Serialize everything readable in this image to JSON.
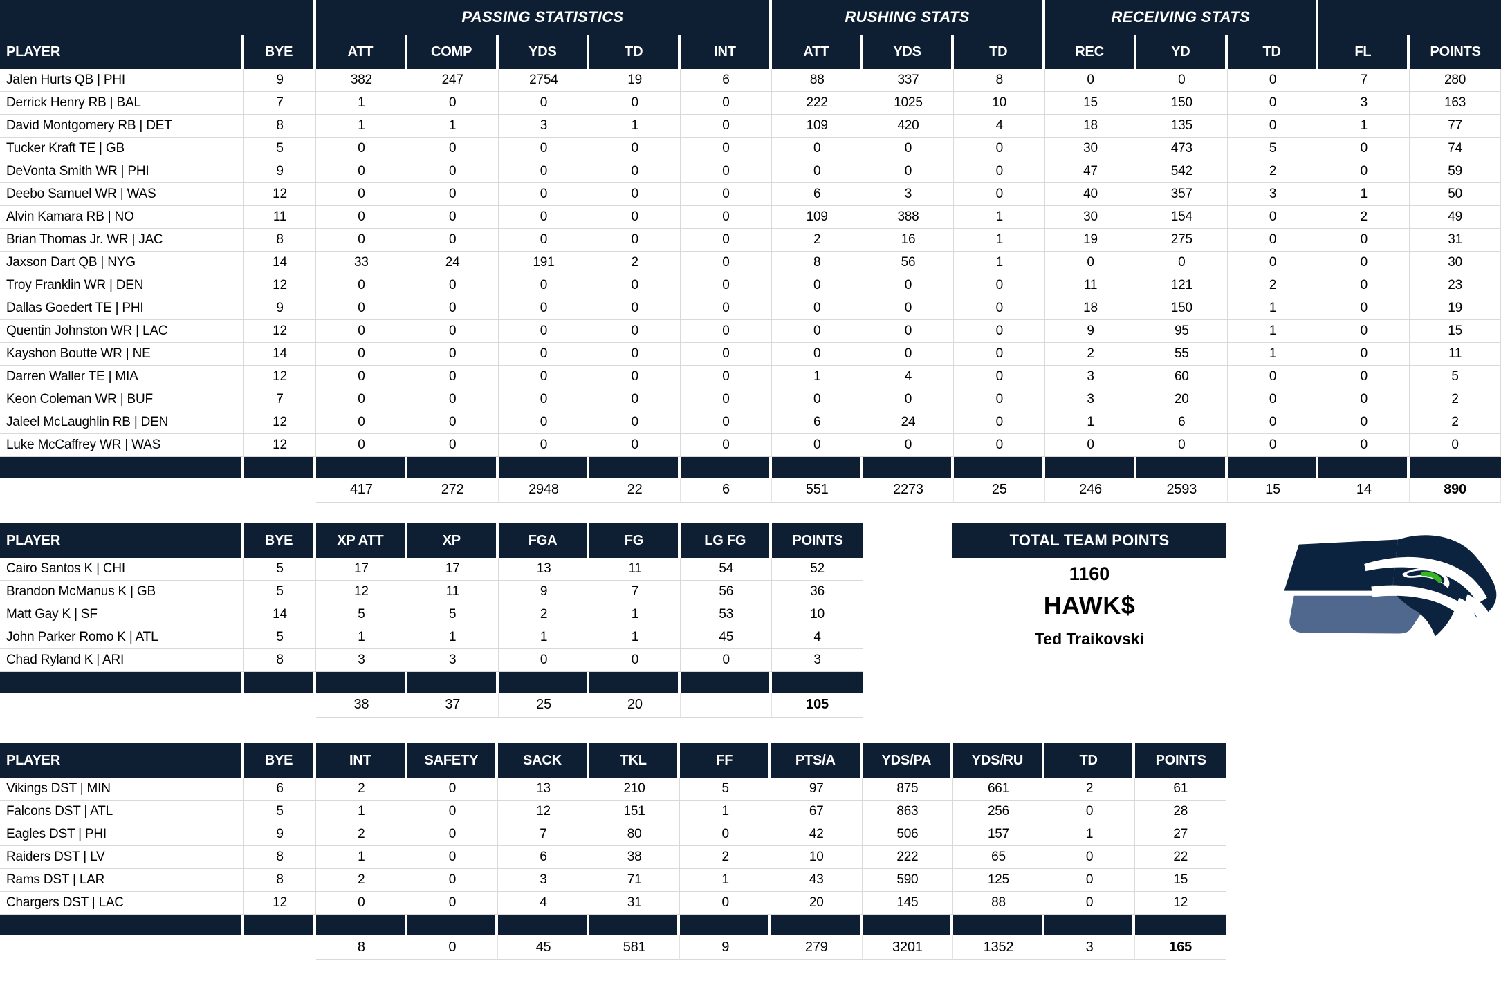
{
  "colors": {
    "header_bg": "#0e1e33",
    "grid_line": "#d9d9d9",
    "header_text": "#ffffff",
    "body_text": "#000000"
  },
  "logo": {
    "name": "seattle-seahawks-logo",
    "navy": "#0c2340",
    "steel": "#50688d",
    "green": "#36b424",
    "white": "#ffffff"
  },
  "team_summary": {
    "title": "TOTAL TEAM POINTS",
    "total_points": "1160",
    "team_name": "HAWK$",
    "owner": "Ted Traikovski"
  },
  "tables": [
    {
      "id": "offense",
      "group_headers": [
        {
          "label": "",
          "span": 2
        },
        {
          "label": "PASSING STATISTICS",
          "span": 5
        },
        {
          "label": "RUSHING STATS",
          "span": 3
        },
        {
          "label": "RECEIVING STATS",
          "span": 3
        },
        {
          "label": "",
          "span": 2
        }
      ],
      "columns": [
        "PLAYER",
        "BYE",
        "ATT",
        "COMP",
        "YDS",
        "TD",
        "INT",
        "ATT",
        "YDS",
        "TD",
        "REC",
        "YD",
        "TD",
        "FL",
        "POINTS"
      ],
      "rows": [
        [
          "Jalen Hurts QB | PHI",
          9,
          382,
          247,
          2754,
          19,
          6,
          88,
          337,
          8,
          0,
          0,
          0,
          7,
          280
        ],
        [
          "Derrick Henry RB | BAL",
          7,
          1,
          0,
          0,
          0,
          0,
          222,
          1025,
          10,
          15,
          150,
          0,
          3,
          163
        ],
        [
          "David Montgomery RB | DET",
          8,
          1,
          1,
          3,
          1,
          0,
          109,
          420,
          4,
          18,
          135,
          0,
          1,
          77
        ],
        [
          "Tucker Kraft TE | GB",
          5,
          0,
          0,
          0,
          0,
          0,
          0,
          0,
          0,
          30,
          473,
          5,
          0,
          74
        ],
        [
          "DeVonta Smith WR | PHI",
          9,
          0,
          0,
          0,
          0,
          0,
          0,
          0,
          0,
          47,
          542,
          2,
          0,
          59
        ],
        [
          "Deebo Samuel WR | WAS",
          12,
          0,
          0,
          0,
          0,
          0,
          6,
          3,
          0,
          40,
          357,
          3,
          1,
          50
        ],
        [
          "Alvin Kamara RB | NO",
          11,
          0,
          0,
          0,
          0,
          0,
          109,
          388,
          1,
          30,
          154,
          0,
          2,
          49
        ],
        [
          "Brian Thomas Jr. WR | JAC",
          8,
          0,
          0,
          0,
          0,
          0,
          2,
          16,
          1,
          19,
          275,
          0,
          0,
          31
        ],
        [
          "Jaxson Dart QB | NYG",
          14,
          33,
          24,
          191,
          2,
          0,
          8,
          56,
          1,
          0,
          0,
          0,
          0,
          30
        ],
        [
          "Troy Franklin WR | DEN",
          12,
          0,
          0,
          0,
          0,
          0,
          0,
          0,
          0,
          11,
          121,
          2,
          0,
          23
        ],
        [
          "Dallas Goedert TE | PHI",
          9,
          0,
          0,
          0,
          0,
          0,
          0,
          0,
          0,
          18,
          150,
          1,
          0,
          19
        ],
        [
          "Quentin Johnston WR | LAC",
          12,
          0,
          0,
          0,
          0,
          0,
          0,
          0,
          0,
          9,
          95,
          1,
          0,
          15
        ],
        [
          "Kayshon Boutte WR | NE",
          14,
          0,
          0,
          0,
          0,
          0,
          0,
          0,
          0,
          2,
          55,
          1,
          0,
          11
        ],
        [
          "Darren Waller TE | MIA",
          12,
          0,
          0,
          0,
          0,
          0,
          1,
          4,
          0,
          3,
          60,
          0,
          0,
          5
        ],
        [
          "Keon Coleman WR | BUF",
          7,
          0,
          0,
          0,
          0,
          0,
          0,
          0,
          0,
          3,
          20,
          0,
          0,
          2
        ],
        [
          "Jaleel McLaughlin RB | DEN",
          12,
          0,
          0,
          0,
          0,
          0,
          6,
          24,
          0,
          1,
          6,
          0,
          0,
          2
        ],
        [
          "Luke McCaffrey WR | WAS",
          12,
          0,
          0,
          0,
          0,
          0,
          0,
          0,
          0,
          0,
          0,
          0,
          0,
          0
        ]
      ],
      "totals": [
        "",
        "",
        417,
        272,
        2948,
        22,
        6,
        551,
        2273,
        25,
        246,
        2593,
        15,
        14,
        890
      ]
    },
    {
      "id": "kickers",
      "columns": [
        "PLAYER",
        "BYE",
        "XP ATT",
        "XP",
        "FGA",
        "FG",
        "LG FG",
        "POINTS"
      ],
      "rows": [
        [
          "Cairo Santos K | CHI",
          5,
          17,
          17,
          13,
          11,
          54,
          52
        ],
        [
          "Brandon McManus K | GB",
          5,
          12,
          11,
          9,
          7,
          56,
          36
        ],
        [
          "Matt Gay K | SF",
          14,
          5,
          5,
          2,
          1,
          53,
          10
        ],
        [
          "John Parker Romo K | ATL",
          5,
          1,
          1,
          1,
          1,
          45,
          4
        ],
        [
          "Chad Ryland K | ARI",
          8,
          3,
          3,
          0,
          0,
          0,
          3
        ]
      ],
      "totals": [
        "",
        "",
        38,
        37,
        25,
        20,
        "",
        105
      ]
    },
    {
      "id": "defense",
      "columns": [
        "PLAYER",
        "BYE",
        "INT",
        "SAFETY",
        "SACK",
        "TKL",
        "FF",
        "PTS/A",
        "YDS/PA",
        "YDS/RU",
        "TD",
        "POINTS"
      ],
      "rows": [
        [
          "Vikings DST | MIN",
          6,
          2,
          0,
          13,
          210,
          5,
          97,
          875,
          661,
          2,
          61
        ],
        [
          "Falcons DST | ATL",
          5,
          1,
          0,
          12,
          151,
          1,
          67,
          863,
          256,
          0,
          28
        ],
        [
          "Eagles DST | PHI",
          9,
          2,
          0,
          7,
          80,
          0,
          42,
          506,
          157,
          1,
          27
        ],
        [
          "Raiders DST | LV",
          8,
          1,
          0,
          6,
          38,
          2,
          10,
          222,
          65,
          0,
          22
        ],
        [
          "Rams DST | LAR",
          8,
          2,
          0,
          3,
          71,
          1,
          43,
          590,
          125,
          0,
          15
        ],
        [
          "Chargers DST | LAC",
          12,
          0,
          0,
          4,
          31,
          0,
          20,
          145,
          88,
          0,
          12
        ]
      ],
      "totals": [
        "",
        "",
        8,
        0,
        45,
        581,
        9,
        279,
        3201,
        1352,
        3,
        165
      ]
    }
  ]
}
